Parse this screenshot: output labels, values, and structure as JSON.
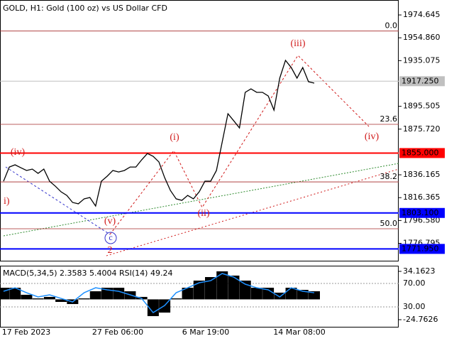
{
  "chart_data": [
    {
      "type": "line",
      "title": "GOLD, H1:  Gold (100 oz) vs US Dollar CFD",
      "color": "#000000",
      "values": [
        1830.6,
        1842.9,
        1844.8,
        1842.3,
        1839.9,
        1841.1,
        1837.4,
        1841.1,
        1830.6,
        1826.3,
        1821.4,
        1818.3,
        1812.2,
        1811.0,
        1815.3,
        1816.5,
        1809.1,
        1830.6,
        1834.9,
        1839.9,
        1838.6,
        1839.9,
        1842.9,
        1842.9,
        1849.1,
        1854.6,
        1852.2,
        1847.3,
        1833.7,
        1822.6,
        1815.3,
        1814.0,
        1818.3,
        1815.3,
        1821.4,
        1830.6,
        1830.6,
        1839.9,
        1864.5,
        1889.1,
        1883.0,
        1876.8,
        1907.6,
        1910.6,
        1907.6,
        1907.6,
        1904.5,
        1892.2,
        1919.9,
        1935.3,
        1929.1,
        1919.9,
        1929.1,
        1916.8,
        1915.6
      ],
      "ylim": [
        1761.1,
        1987.6
      ],
      "yticks": [
        1974.645,
        {
          "value": 1954.86,
          "label": "1954.860"
        },
        1935.075,
        1895.505,
        {
          "value": 1875.72,
          "label": "1875.720"
        },
        1836.165,
        1816.365,
        {
          "value": 1796.58,
          "label": "1796.580"
        },
        1776.795
      ],
      "levels": [
        {
          "value": 1917.25,
          "label": "1917.250",
          "color": "#c0c0c0"
        },
        {
          "value": 1855,
          "label": "1855.000",
          "color": "#ff0000"
        },
        {
          "value": 1803.1,
          "label": "1803.100",
          "color": "#0000ff"
        },
        {
          "value": 1771.95,
          "label": "1771.950",
          "color": "#0000ff"
        }
      ],
      "fib_levels": [
        {
          "label": "0.0",
          "price": 1960.7
        },
        {
          "label": "23.6",
          "price": 1879.9
        },
        {
          "label": "38.2",
          "price": 1830.0
        },
        {
          "label": "50.0",
          "price": 1789.4
        }
      ],
      "annotations": [
        "(iv)",
        "(i)",
        "(iii)",
        "(iv)",
        "(ii)",
        "(v)",
        "c",
        "2",
        "i)"
      ],
      "x_labels": [
        "17 Feb 2023",
        "27 Feb 06:00",
        "6 Mar 19:00",
        "14 Mar 08:00"
      ]
    },
    {
      "type": "bar",
      "title": "MACD(5,34,5) 2.3583 5.4004 RSI(14) 49.24",
      "series": [
        {
          "color": "#000000",
          "values": [
            14.2,
            14.2,
            5.6,
            1.2,
            3.0,
            -3.1,
            -5.7,
            1.2,
            9.9,
            14.2,
            14.2,
            9.9,
            3.0,
            -20.4,
            -16.1,
            1.2,
            14.2,
            22.9,
            27.2,
            34.2,
            29.0,
            22.9,
            14.2,
            14.2,
            8.2,
            14.2,
            11.6,
            9.9
          ]
        },
        {
          "color": "#1e90ff",
          "axis": "y2",
          "values": [
            56.7,
            62.7,
            54.2,
            47.0,
            50.6,
            44.5,
            38.5,
            54.2,
            62.7,
            59.1,
            56.7,
            50.6,
            44.5,
            20.3,
            32.4,
            54.2,
            62.7,
            71.2,
            74.8,
            87.0,
            80.9,
            68.8,
            62.7,
            59.1,
            47.0,
            62.7,
            56.7,
            54.2
          ]
        }
      ],
      "ylim": [
        -34.3,
        40.2
      ],
      "yticks": [
        34.1623,
        -24.7626
      ],
      "y2lim": [
        -5.1,
        99.1
      ],
      "y2ticks": [
        {
          "value": 70,
          "label": "70.00"
        },
        {
          "value": 30,
          "label": "30.00"
        }
      ]
    }
  ]
}
